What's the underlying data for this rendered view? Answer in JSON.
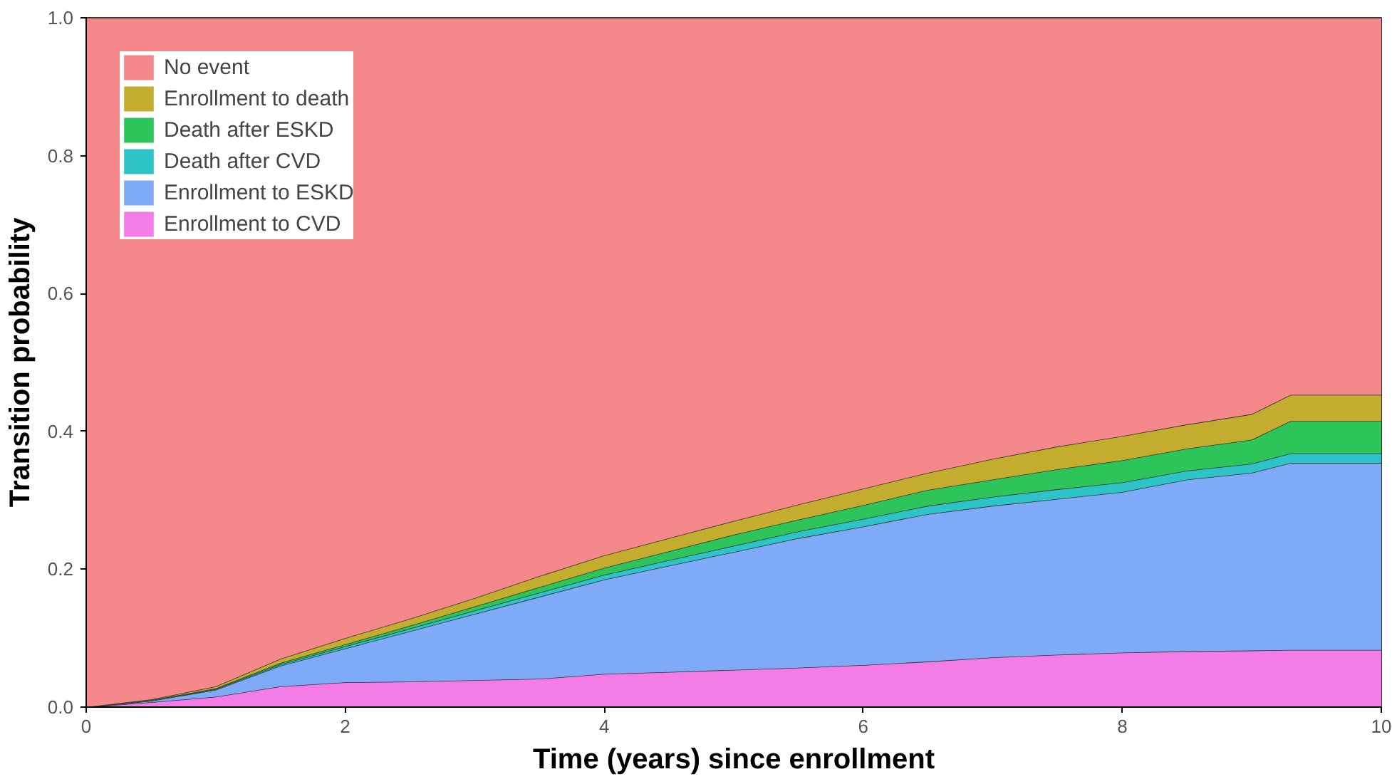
{
  "chart_data": {
    "type": "area",
    "stacked": true,
    "xlabel": "Time (years) since enrollment",
    "ylabel": "Transition probability",
    "x": [
      0,
      0.5,
      1,
      1.5,
      2,
      2.5,
      3,
      3.5,
      4,
      4.5,
      5,
      5.5,
      6,
      6.5,
      7,
      7.5,
      8,
      8.5,
      9,
      9.3,
      10
    ],
    "series": [
      {
        "name": "Enrollment to CVD",
        "color": "#f47ce6",
        "values": [
          0,
          0.007,
          0.015,
          0.03,
          0.036,
          0.037,
          0.039,
          0.041,
          0.048,
          0.051,
          0.054,
          0.057,
          0.061,
          0.066,
          0.072,
          0.076,
          0.079,
          0.081,
          0.082,
          0.083,
          0.083
        ]
      },
      {
        "name": "Enrollment to ESKD",
        "color": "#7eaaf7",
        "values": [
          0,
          0.002,
          0.01,
          0.03,
          0.049,
          0.073,
          0.096,
          0.119,
          0.137,
          0.154,
          0.171,
          0.188,
          0.201,
          0.214,
          0.22,
          0.226,
          0.233,
          0.249,
          0.258,
          0.271,
          0.271
        ]
      },
      {
        "name": "Death after CVD",
        "color": "#2ec4c7",
        "values": [
          0,
          0,
          0.001,
          0.002,
          0.003,
          0.004,
          0.005,
          0.006,
          0.007,
          0.008,
          0.009,
          0.01,
          0.011,
          0.012,
          0.013,
          0.014,
          0.014,
          0.013,
          0.013,
          0.014,
          0.014
        ]
      },
      {
        "name": "Death after ESKD",
        "color": "#2dc45a",
        "values": [
          0,
          0.001,
          0.001,
          0.002,
          0.003,
          0.004,
          0.006,
          0.008,
          0.01,
          0.013,
          0.016,
          0.017,
          0.02,
          0.023,
          0.025,
          0.029,
          0.032,
          0.032,
          0.035,
          0.047,
          0.047
        ]
      },
      {
        "name": "Enrollment to death",
        "color": "#c4ac2f",
        "values": [
          0,
          0.001,
          0.003,
          0.006,
          0.009,
          0.01,
          0.012,
          0.016,
          0.018,
          0.019,
          0.02,
          0.022,
          0.024,
          0.025,
          0.03,
          0.033,
          0.035,
          0.035,
          0.037,
          0.038,
          0.038
        ]
      },
      {
        "name": "No event",
        "color": "#f4888a",
        "values": [
          1,
          0.989,
          0.97,
          0.93,
          0.9,
          0.872,
          0.842,
          0.81,
          0.78,
          0.755,
          0.73,
          0.706,
          0.683,
          0.66,
          0.64,
          0.622,
          0.607,
          0.59,
          0.575,
          0.547,
          0.547
        ]
      }
    ],
    "xlim": [
      0,
      10
    ],
    "ylim": [
      0,
      1
    ],
    "xticks": [
      0,
      2,
      4,
      6,
      8,
      10
    ],
    "yticks": [
      {
        "value": 0,
        "label": "0.0"
      },
      {
        "value": 0.2,
        "label": "0.2"
      },
      {
        "value": 0.4,
        "label": "0.4"
      },
      {
        "value": 0.6,
        "label": "0.6"
      },
      {
        "value": 0.8,
        "label": "0.8"
      },
      {
        "value": 1,
        "label": "1.0"
      }
    ],
    "legend": "top left"
  }
}
